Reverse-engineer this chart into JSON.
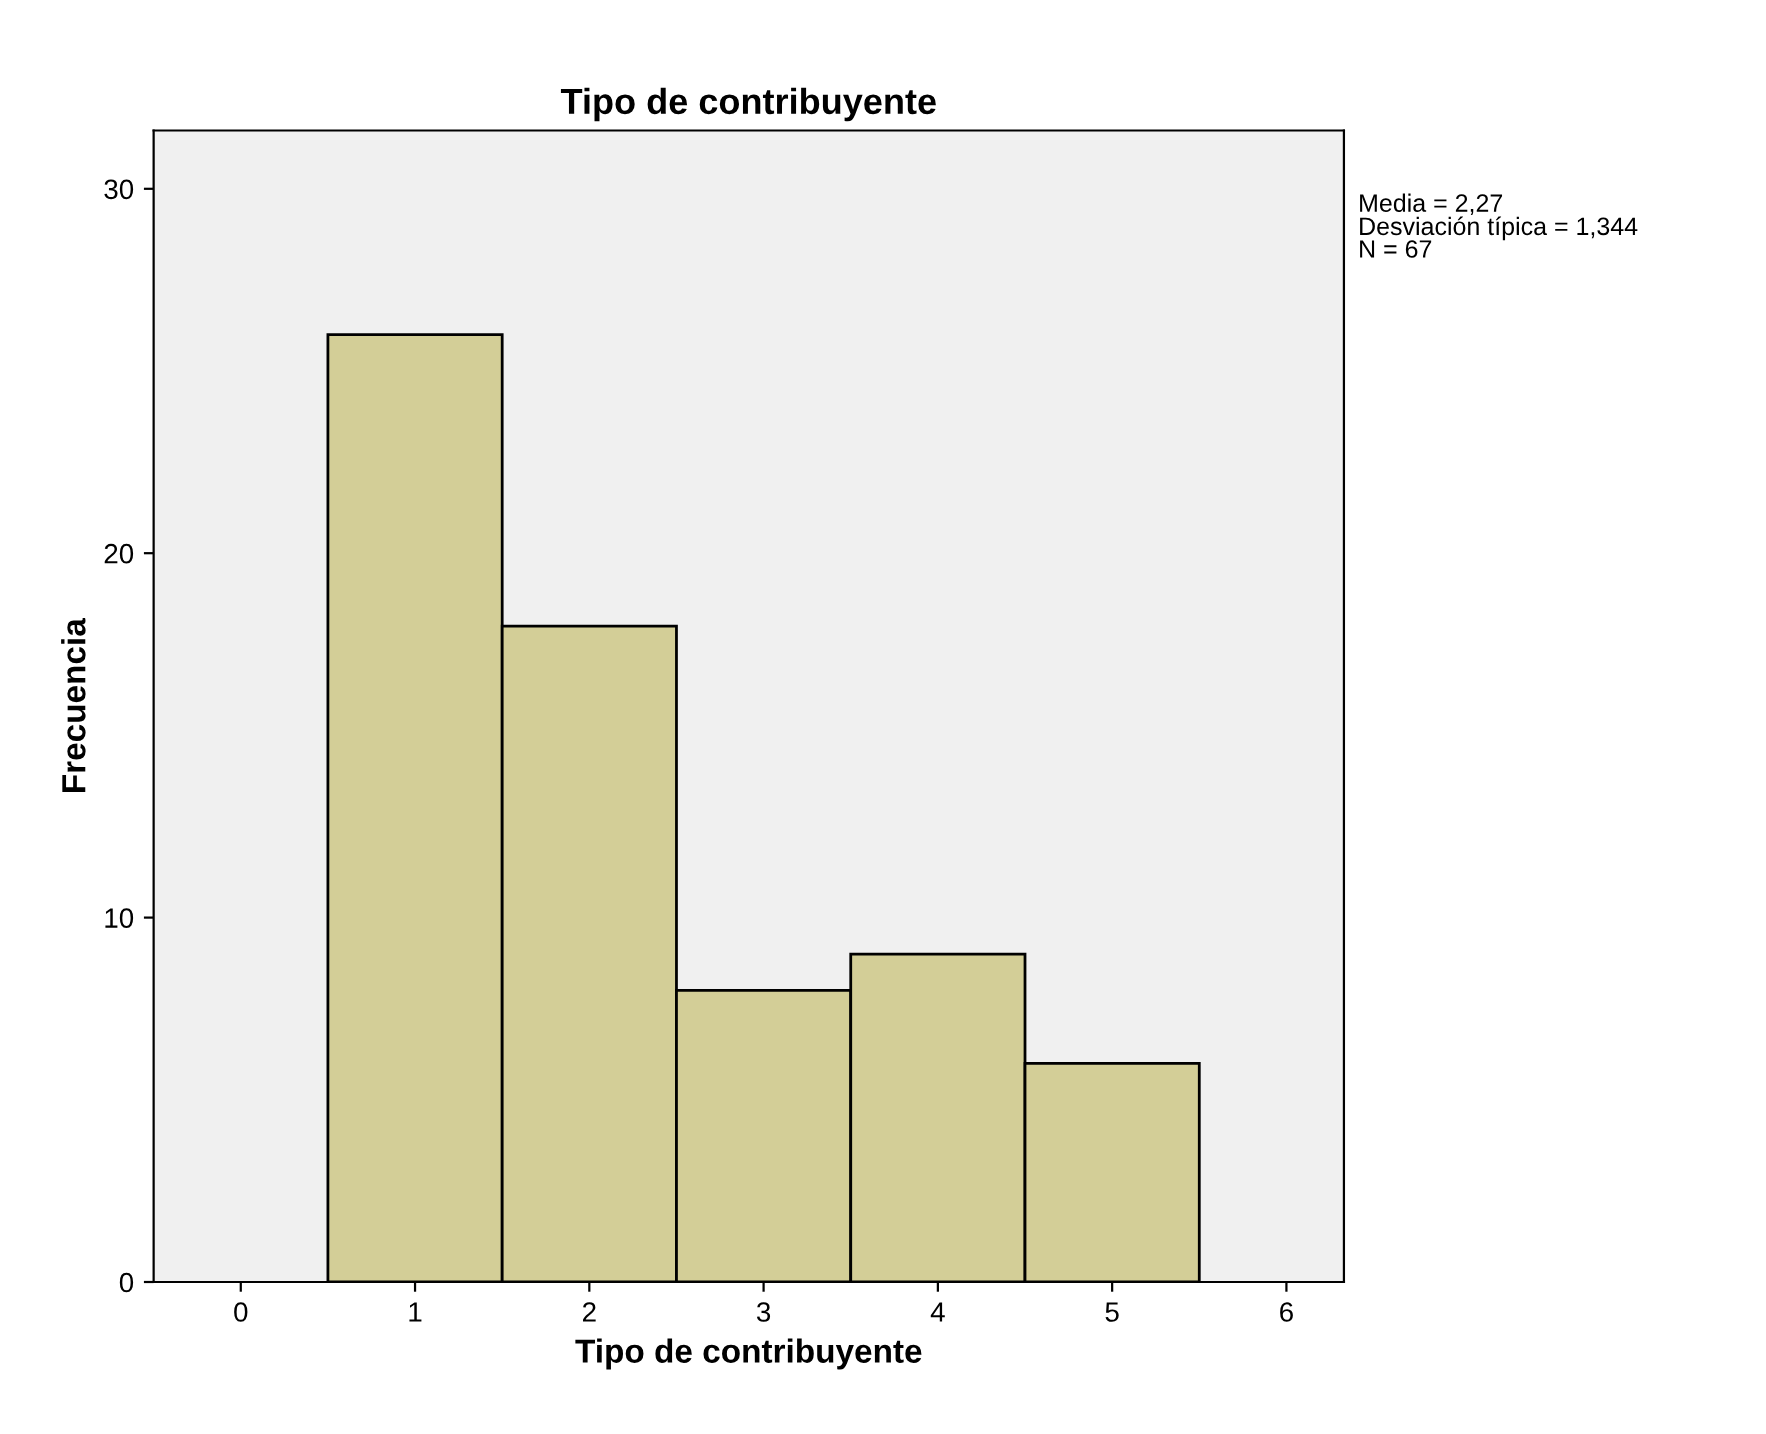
{
  "chart_data": {
    "type": "histogram",
    "title": "Tipo de contribuyente",
    "xlabel": "Tipo de contribuyente",
    "ylabel": "Frecuencia",
    "bins": [
      0.5,
      1.5,
      2.5,
      3.5,
      4.5,
      5.5
    ],
    "values": [
      26,
      18,
      8,
      9,
      6
    ],
    "color": "#d3ce97",
    "xlim": [
      -0.5,
      6.33
    ],
    "xticks": [
      0,
      1,
      2,
      3,
      4,
      5,
      6
    ],
    "ylim": [
      0,
      31.6
    ],
    "yticks": [
      0,
      10,
      20,
      30
    ],
    "grid": false,
    "annotations": [
      "Media = 2,27",
      "Desviación típica = 1,344",
      "N = 67"
    ]
  }
}
